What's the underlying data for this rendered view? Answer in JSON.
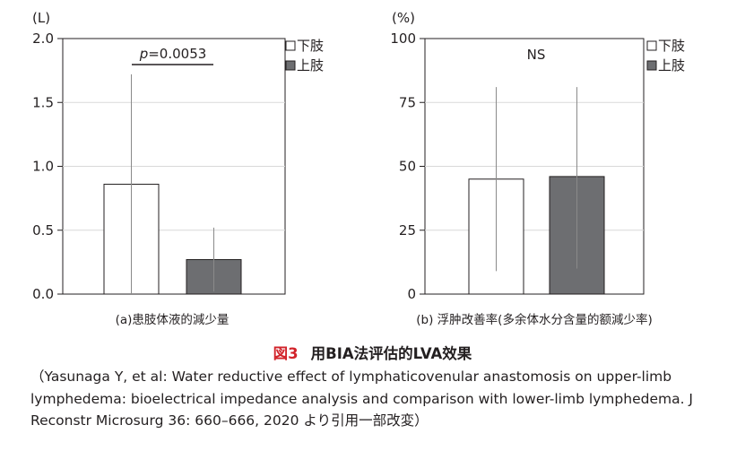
{
  "figure": {
    "number": "図3",
    "title": "用BIA法评估的LVA效果",
    "citation": "（Yasunaga Y, et al: Water reductive effect of lymphaticovenular anastomosis on upper-limb lymphedema: bioelectrical impedance analysis and comparison with lower-limb lymphedema. J Reconstr Microsurg 36: 660–666, 2020 より引用一部改変）"
  },
  "legend": {
    "lower_limb": "下肢",
    "upper_limb": "上肢"
  },
  "colors": {
    "white_bar": "#ffffff",
    "gray_bar": "#6d6e71",
    "axis": "#231f20",
    "grid": "#d9d9d9",
    "accent": "#d2232a"
  },
  "chart_data": [
    {
      "type": "bar",
      "unit_label": "(L)",
      "caption": "(a)患肢体液的減少量",
      "annotation_italic": "p",
      "annotation_rest": "=0.0053",
      "ylim": [
        0,
        2.0
      ],
      "yticks": [
        "0.0",
        "0.5",
        "1.0",
        "1.5",
        "2.0"
      ],
      "ytick_values": [
        0,
        0.5,
        1.0,
        1.5,
        2.0
      ],
      "grid": true,
      "series": [
        {
          "name": "下肢",
          "value": 0.86,
          "error_low": 0.0,
          "error_high": 1.72
        },
        {
          "name": "上肢",
          "value": 0.27,
          "error_low": 0.02,
          "error_high": 0.52
        }
      ]
    },
    {
      "type": "bar",
      "unit_label": "(%)",
      "caption": "(b) 浮肿改善率(多余体水分含量的额減少率)",
      "annotation": "NS",
      "ylim": [
        0,
        100
      ],
      "yticks": [
        "0",
        "25",
        "50",
        "75",
        "100"
      ],
      "ytick_values": [
        0,
        25,
        50,
        75,
        100
      ],
      "grid": true,
      "series": [
        {
          "name": "下肢",
          "value": 45,
          "error_low": 9,
          "error_high": 81
        },
        {
          "name": "上肢",
          "value": 46,
          "error_low": 10,
          "error_high": 81
        }
      ]
    }
  ]
}
